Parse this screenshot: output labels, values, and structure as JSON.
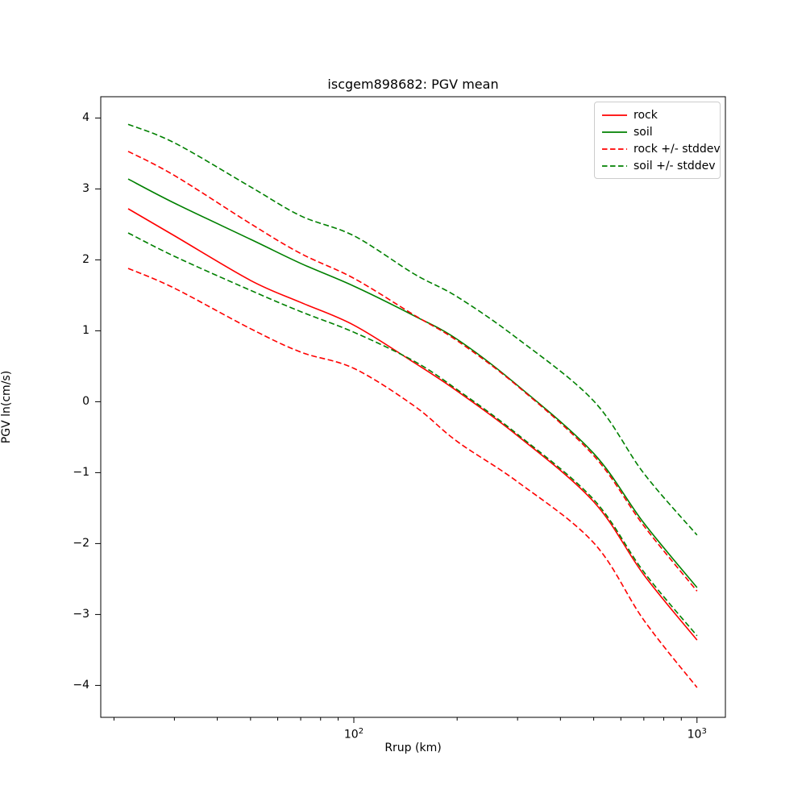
{
  "figure": {
    "title": "iscgem898682: PGV mean",
    "xlabel": "Rrup (km)",
    "ylabel": "PGV ln(cm/s)",
    "background_color": "#ffffff",
    "axis_color": "#000000"
  },
  "legend": {
    "position": "upper right",
    "border_color": "#cccccc",
    "items": [
      {
        "label": "rock",
        "color": "#ff0000",
        "style": "solid"
      },
      {
        "label": "soil",
        "color": "#008000",
        "style": "solid"
      },
      {
        "label": "rock +/- stddev",
        "color": "#ff0000",
        "style": "dashed"
      },
      {
        "label": "soil +/- stddev",
        "color": "#008000",
        "style": "dashed"
      }
    ]
  },
  "chart_data": {
    "type": "line",
    "title": "iscgem898682: PGV mean",
    "xlabel": "Rrup (km)",
    "ylabel": "PGV ln(cm/s)",
    "x_scale": "log",
    "grid": false,
    "legend_position": "upper right",
    "xlim": [
      18.3,
      1210
    ],
    "ylim": [
      -4.45,
      4.3
    ],
    "x": [
      22,
      30,
      50,
      70,
      100,
      150,
      200,
      300,
      500,
      700,
      1000
    ],
    "series": [
      {
        "name": "rock",
        "color": "#ff0000",
        "style": "solid",
        "values": [
          2.72,
          2.34,
          1.71,
          1.4,
          1.08,
          0.55,
          0.15,
          -0.48,
          -1.41,
          -2.44,
          -3.36
        ]
      },
      {
        "name": "soil",
        "color": "#008000",
        "style": "solid",
        "values": [
          3.14,
          2.8,
          2.29,
          1.95,
          1.63,
          1.21,
          0.88,
          0.23,
          -0.73,
          -1.71,
          -2.62
        ]
      },
      {
        "name": "rock + stddev",
        "color": "#ff0000",
        "style": "dashed",
        "values": [
          3.53,
          3.19,
          2.51,
          2.09,
          1.74,
          1.22,
          0.86,
          0.22,
          -0.76,
          -1.75,
          -2.67
        ]
      },
      {
        "name": "rock - stddev",
        "color": "#ff0000",
        "style": "dashed",
        "values": [
          1.88,
          1.6,
          1.03,
          0.7,
          0.47,
          -0.06,
          -0.56,
          -1.13,
          -1.99,
          -3.08,
          -4.03
        ]
      },
      {
        "name": "soil + stddev",
        "color": "#008000",
        "style": "dashed",
        "values": [
          3.91,
          3.65,
          3.03,
          2.62,
          2.34,
          1.8,
          1.48,
          0.89,
          0.01,
          -1.01,
          -1.88
        ]
      },
      {
        "name": "soil - stddev",
        "color": "#008000",
        "style": "dashed",
        "values": [
          2.38,
          2.05,
          1.57,
          1.27,
          0.98,
          0.57,
          0.17,
          -0.46,
          -1.38,
          -2.4,
          -3.3
        ]
      }
    ],
    "yticks": [
      {
        "label": "−4",
        "value": -4
      },
      {
        "label": "−3",
        "value": -3
      },
      {
        "label": "−2",
        "value": -2
      },
      {
        "label": "−1",
        "value": -1
      },
      {
        "label": "0",
        "value": 0
      },
      {
        "label": "1",
        "value": 1
      },
      {
        "label": "2",
        "value": 2
      },
      {
        "label": "3",
        "value": 3
      },
      {
        "label": "4",
        "value": 4
      }
    ],
    "xticks_major": [
      {
        "text": "10",
        "sup": "2",
        "value": 100
      },
      {
        "text": "10",
        "sup": "3",
        "value": 1000
      }
    ],
    "xticks_minor": [
      20,
      30,
      40,
      50,
      60,
      70,
      80,
      90,
      200,
      300,
      400,
      500,
      600,
      700,
      800,
      900
    ]
  }
}
